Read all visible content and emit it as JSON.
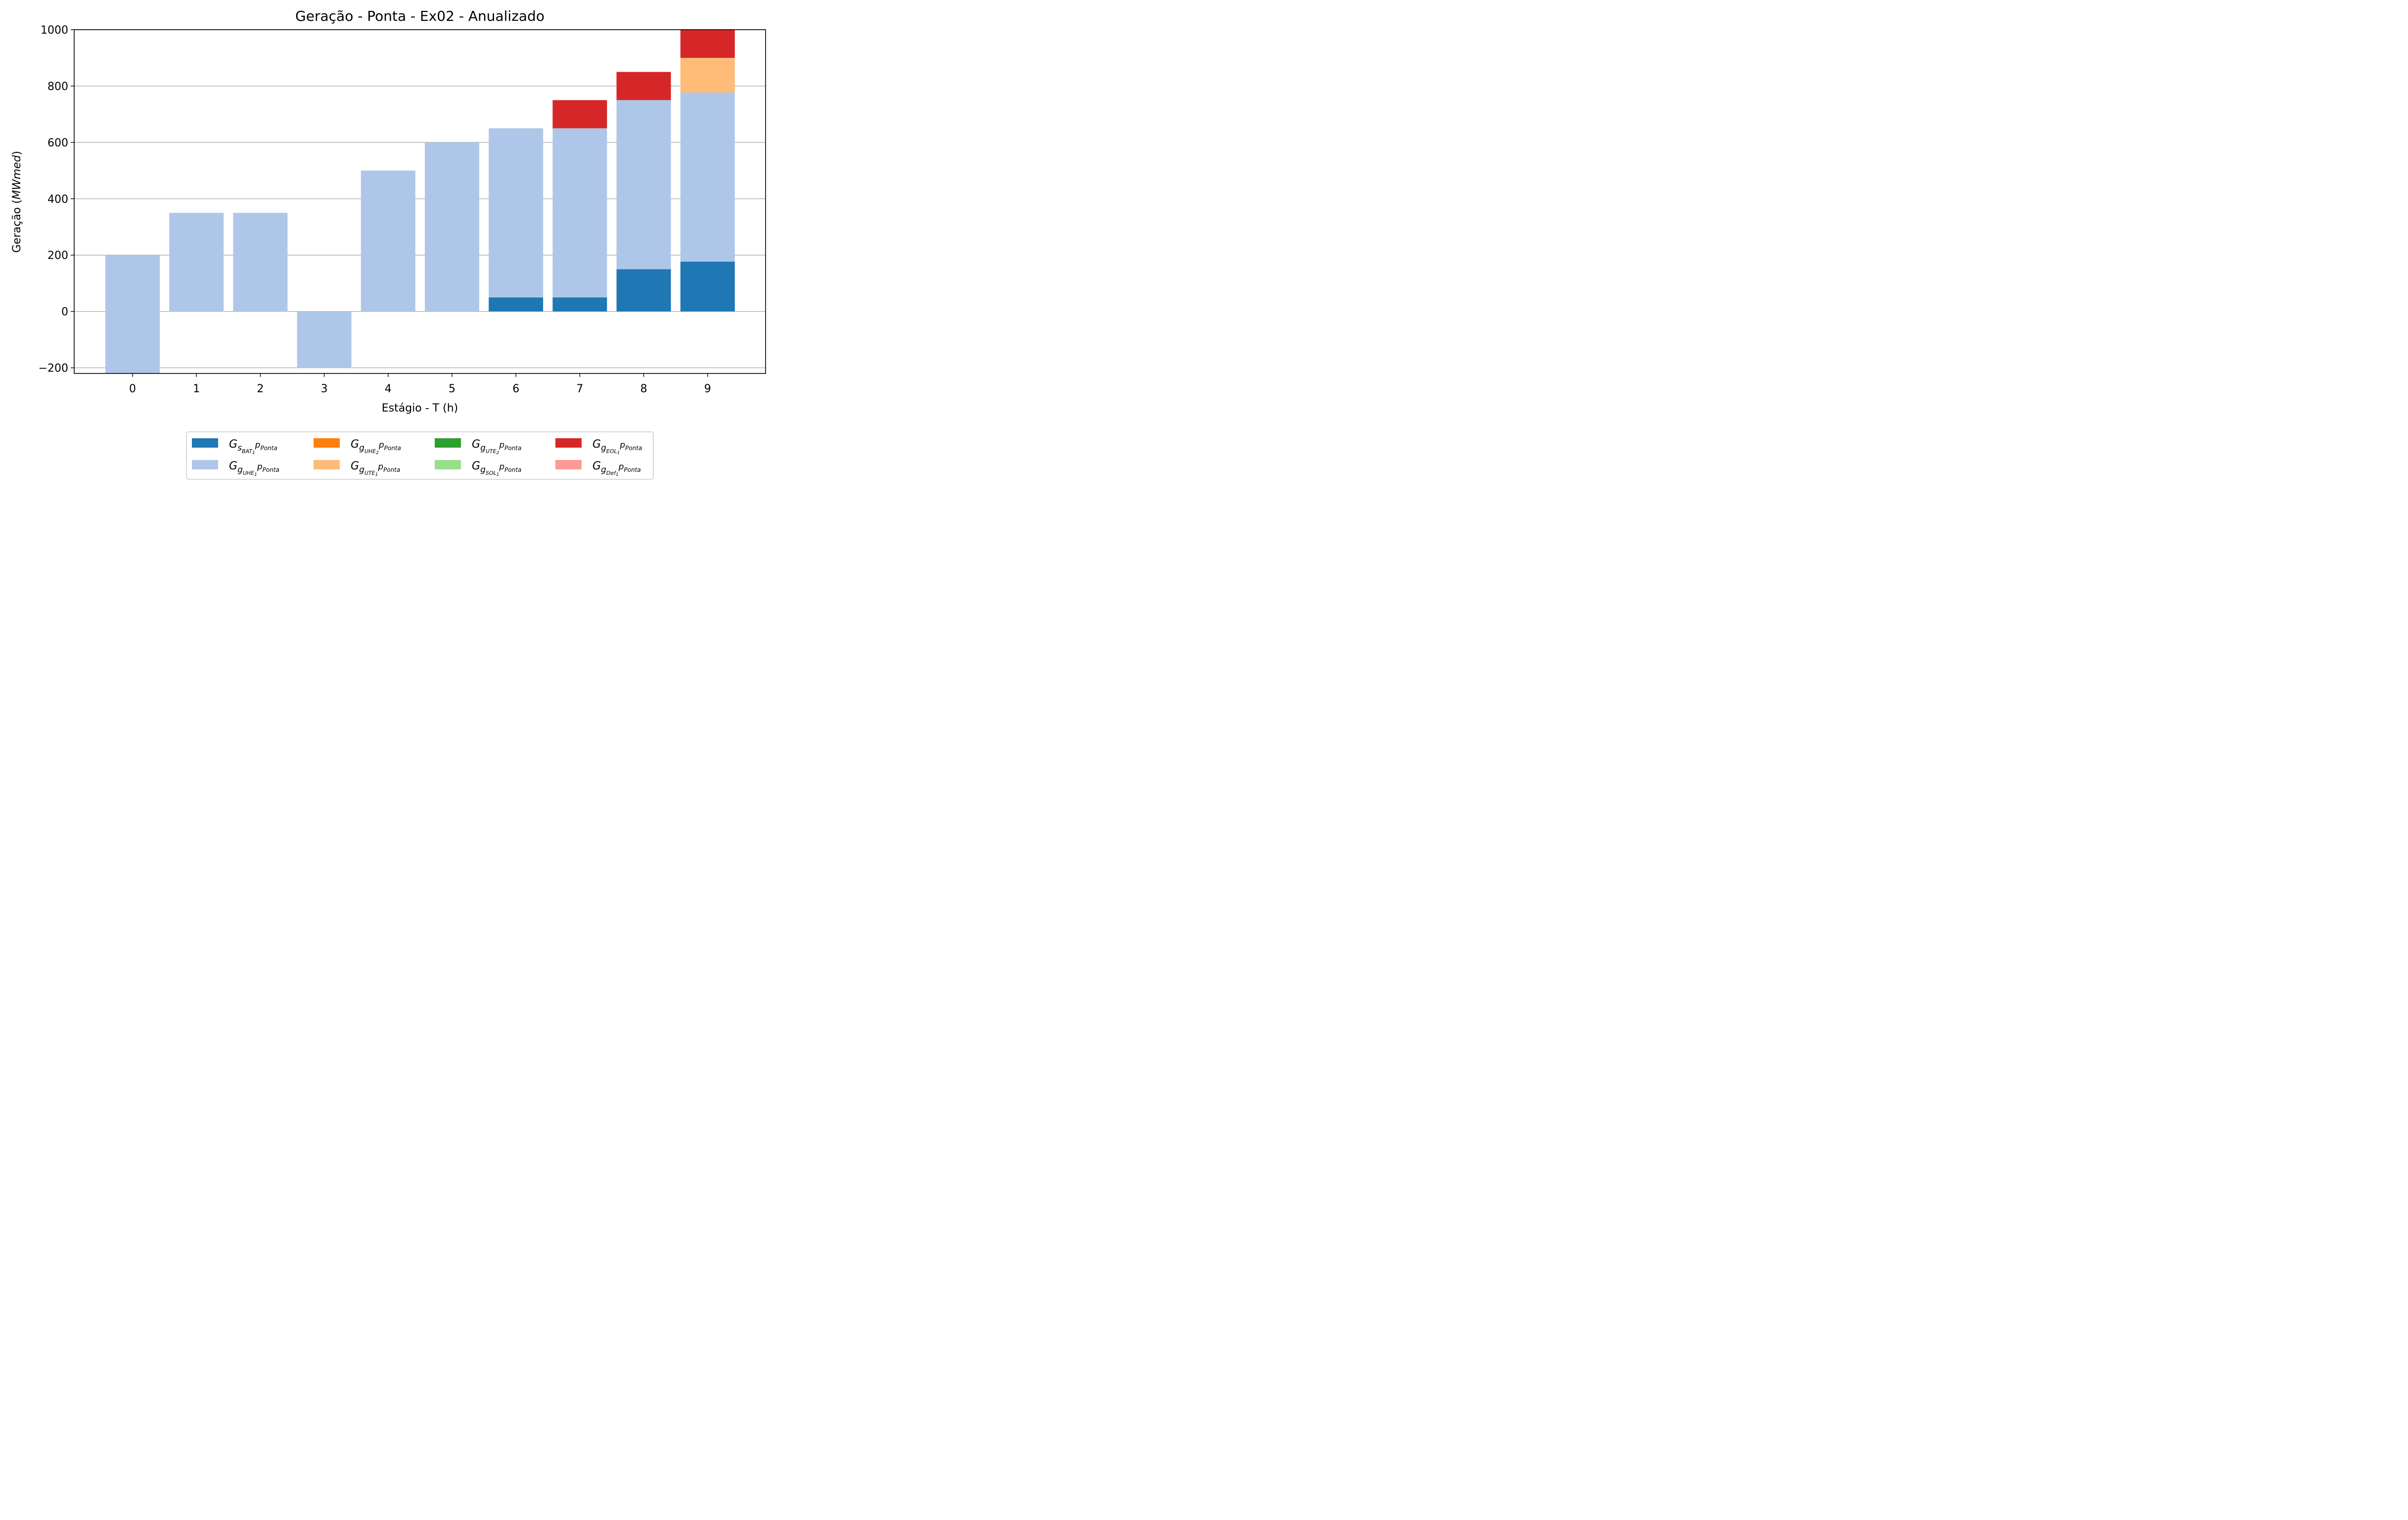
{
  "chart_data": {
    "type": "bar",
    "stacked": true,
    "title": "Geração - Ponta - Ex02 - Anualizado",
    "xlabel": "Estágio - T (h)",
    "ylabel_prefix": "Geração (",
    "ylabel_unit": "MWmed",
    "ylabel_suffix": ")",
    "categories": [
      "0",
      "1",
      "2",
      "3",
      "4",
      "5",
      "6",
      "7",
      "8",
      "9"
    ],
    "ylim": [
      -220,
      1000
    ],
    "yticks": [
      -200,
      0,
      200,
      400,
      600,
      800,
      1000
    ],
    "ytick_labels": [
      "−200",
      "0",
      "200",
      "400",
      "600",
      "800",
      "1000"
    ],
    "grid": "horizontal",
    "legend_position": "bottom-center",
    "series": [
      {
        "name_main": "G",
        "name_sub": "s",
        "name_subsub": "BAT",
        "name_idx": "1",
        "name_tail": "p",
        "name_tail_sub": "Ponta",
        "color": "#1f77b4",
        "values": [
          0,
          0,
          0,
          0,
          0,
          0,
          50,
          50,
          150,
          177
        ]
      },
      {
        "name_main": "G",
        "name_sub": "g",
        "name_subsub": "UHE",
        "name_idx": "1",
        "name_tail": "p",
        "name_tail_sub": "Ponta",
        "color": "#aec7e8",
        "values": [
          -220,
          350,
          350,
          -200,
          500,
          600,
          600,
          600,
          600,
          600
        ]
      },
      {
        "name_main": "G",
        "name_sub": "g",
        "name_subsub": "UHE",
        "name_idx": "2",
        "name_tail": "p",
        "name_tail_sub": "Ponta",
        "color": "#ff7f0e",
        "values": [
          0,
          0,
          0,
          0,
          0,
          0,
          0,
          0,
          0,
          0
        ]
      },
      {
        "name_main": "G",
        "name_sub": "g",
        "name_subsub": "UTE",
        "name_idx": "1",
        "name_tail": "p",
        "name_tail_sub": "Ponta",
        "color": "#ffbb78",
        "values": [
          0,
          0,
          0,
          0,
          0,
          0,
          0,
          0,
          0,
          123
        ]
      },
      {
        "name_main": "G",
        "name_sub": "g",
        "name_subsub": "UTE",
        "name_idx": "2",
        "name_tail": "p",
        "name_tail_sub": "Ponta",
        "color": "#2ca02c",
        "values": [
          0,
          0,
          0,
          0,
          0,
          0,
          0,
          0,
          0,
          0
        ]
      },
      {
        "name_main": "G",
        "name_sub": "g",
        "name_subsub": "SOL",
        "name_idx": "1",
        "name_tail": "p",
        "name_tail_sub": "Ponta",
        "color": "#98df8a",
        "values": [
          0,
          0,
          0,
          0,
          0,
          0,
          0,
          0,
          0,
          0
        ]
      },
      {
        "name_main": "G",
        "name_sub": "g",
        "name_subsub": "EOL",
        "name_idx": "1",
        "name_tail": "p",
        "name_tail_sub": "Ponta",
        "color": "#d62728",
        "values": [
          0,
          0,
          0,
          0,
          0,
          0,
          0,
          100,
          100,
          100
        ]
      },
      {
        "name_main": "G",
        "name_sub": "g",
        "name_subsub": "Def",
        "name_idx": "1",
        "name_tail": "p",
        "name_tail_sub": "Ponta",
        "color": "#ff9896",
        "values": [
          0,
          0,
          0,
          0,
          0,
          0,
          0,
          0,
          0,
          0
        ]
      }
    ],
    "extra_segments": [
      {
        "category": "0",
        "series_index": 1,
        "value": 200,
        "note_hidden": true
      }
    ]
  }
}
